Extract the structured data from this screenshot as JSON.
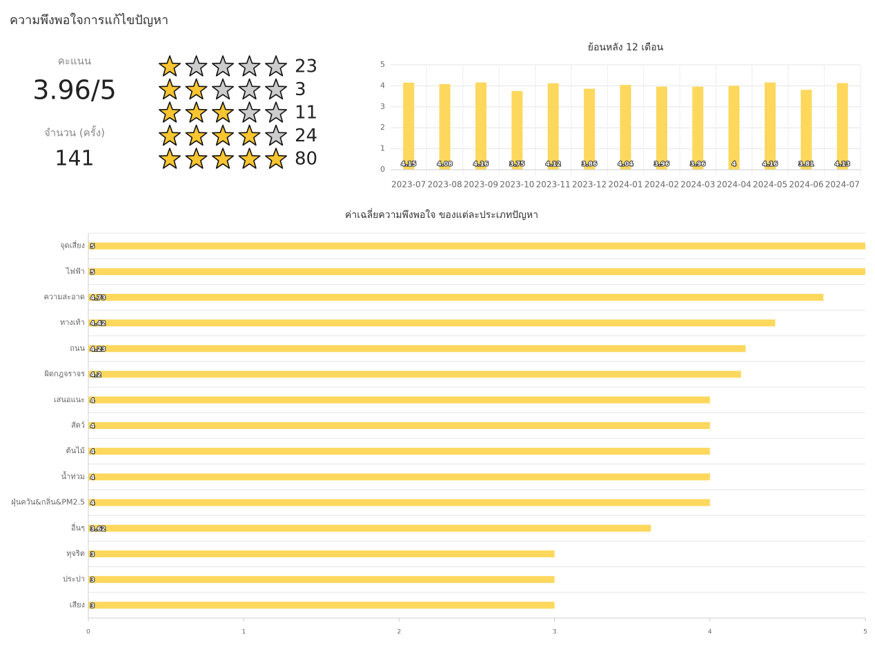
{
  "header": {
    "title": "ความพึงพอใจการแก้ไขปัญหา"
  },
  "summary": {
    "score_label": "คะแนน",
    "score": "3.96/5",
    "count_label": "จำนวน (ครั้ง)",
    "count": 141,
    "ratings": [
      {
        "stars": 1,
        "count": 23
      },
      {
        "stars": 2,
        "count": 3
      },
      {
        "stars": 3,
        "count": 11
      },
      {
        "stars": 4,
        "count": 24
      },
      {
        "stars": 5,
        "count": 80
      }
    ]
  },
  "chart_data": [
    {
      "type": "bar",
      "title": "ย้อนหลัง 12 เดือน",
      "categories": [
        "2023-07",
        "2023-08",
        "2023-09",
        "2023-10",
        "2023-11",
        "2023-12",
        "2024-01",
        "2024-02",
        "2024-03",
        "2024-04",
        "2024-05",
        "2024-06",
        "2024-07"
      ],
      "values": [
        4.15,
        4.08,
        4.16,
        3.75,
        4.12,
        3.86,
        4.04,
        3.96,
        3.96,
        4,
        4.16,
        3.81,
        4.13
      ],
      "color": "#fdd85d",
      "ylim": [
        0,
        5
      ],
      "yticks": [
        0,
        1,
        2,
        3,
        4,
        5
      ],
      "grid": true
    },
    {
      "type": "hbar",
      "title": "ค่าเฉลี่ยความพึงพอใจ ของแต่ละประเภทปัญหา",
      "categories": [
        "จุดเสี่ยง",
        "ไฟฟ้า",
        "ความสะอาด",
        "ทางเท้า",
        "ถนน",
        "ผิดกฎจราจร",
        "เสนอแนะ",
        "สัตว์",
        "ต้นไม้",
        "น้ำท่วม",
        "ฝุ่นควัน&กลิ่น&PM2.5",
        "อื่นๆ",
        "ทุจริต",
        "ประปา",
        "เสียง"
      ],
      "values": [
        5,
        5,
        4.73,
        4.42,
        4.23,
        4.2,
        4,
        4,
        4,
        4,
        4,
        3.62,
        3,
        3,
        3
      ],
      "color": "#fdd85d",
      "xlim": [
        0,
        5
      ],
      "xticks": [
        0,
        1,
        2,
        3,
        4,
        5
      ],
      "grid": true
    }
  ]
}
